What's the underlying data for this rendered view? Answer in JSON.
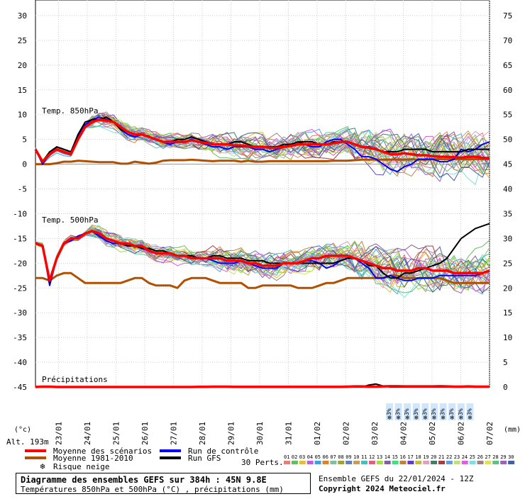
{
  "chart_data": {
    "type": "line",
    "title": "Diagramme des ensembles GEFS sur 384h : 45N 9.8E",
    "subtitle": "Températures 850hPa et 500hPa (°C) , précipitations (mm)",
    "run_label": "Ensemble GEFS du 22/01/2024 - 12Z",
    "copyright": "Copyright 2024 Meteociel.fr",
    "altitude_label": "Alt. 193m",
    "y_left_unit": "(°c)",
    "y_right_unit": "(mm)",
    "y_left_ticks": [
      30,
      25,
      20,
      15,
      10,
      5,
      0,
      -5,
      -10,
      -15,
      -20,
      -25,
      -30,
      -35,
      -40,
      -45
    ],
    "y_right_ticks": [
      75,
      70,
      65,
      60,
      55,
      50,
      45,
      40,
      35,
      30,
      25,
      20,
      15,
      10,
      5,
      0
    ],
    "ylim_left": [
      -45,
      30
    ],
    "x_labels": [
      "23/01",
      "24/01",
      "25/01",
      "26/01",
      "27/01",
      "28/01",
      "29/01",
      "30/01",
      "31/01",
      "01/02",
      "02/02",
      "03/02",
      "04/02",
      "05/02",
      "06/02",
      "07/02"
    ],
    "panel_labels": {
      "t850": "Temp. 850hPa",
      "t500": "Temp. 500hPa",
      "precip": "Précipitations"
    },
    "snow_risk_label": "3%",
    "snow_risk_count": 10,
    "legend": {
      "mean_scenarios": "Moyenne des scénarios",
      "mean_climate": "Moyenne 1981-2010",
      "snow_risk": "Risque neige",
      "control_run": "Run de contrôle",
      "gfs_run": "Run GFS",
      "perts_label": "30 Perts.",
      "perts": [
        "01",
        "02",
        "03",
        "04",
        "05",
        "06",
        "07",
        "08",
        "09",
        "10",
        "11",
        "12",
        "13",
        "14",
        "15",
        "16",
        "17",
        "18",
        "19",
        "20",
        "21",
        "22",
        "23",
        "24",
        "25",
        "26",
        "27",
        "28",
        "29",
        "30"
      ]
    },
    "colors": {
      "mean": "#ff0000",
      "climate": "#b05000",
      "control": "#0000ff",
      "gfs": "#000000",
      "snow": "#66aaff",
      "perts": [
        "#e08080",
        "#60c060",
        "#e0c040",
        "#c060e0",
        "#40a0e0",
        "#e08030",
        "#80c0a0",
        "#a0a040",
        "#6080c0",
        "#c0a060",
        "#40c0c0",
        "#e06080",
        "#a0e040",
        "#8060a0",
        "#40e080",
        "#c08040",
        "#6040c0",
        "#c0c040",
        "#e0a0c0",
        "#408060",
        "#a04040",
        "#60a0e0",
        "#c0e080",
        "#e060e0",
        "#80e0e0",
        "#a08080",
        "#e0e060",
        "#60c080",
        "#a060c0",
        "#4060a0"
      ]
    },
    "series": [
      {
        "name": "Moyenne des scénarios",
        "panel": "t850",
        "values": [
          3,
          0.5,
          2,
          3,
          2.5,
          2,
          5,
          7.5,
          8.5,
          9,
          8.8,
          8.5,
          7.5,
          6.5,
          6,
          6,
          5.5,
          5,
          4.5,
          4.5,
          4.5,
          4.5,
          4.8,
          4.5,
          4.3,
          4,
          4,
          4,
          3.8,
          3.8,
          3.6,
          3.5,
          3.5,
          3.3,
          3.3,
          3.5,
          3.7,
          4,
          4,
          4,
          4,
          4,
          4.2,
          4.5,
          4.5,
          4,
          3.5,
          3.3,
          3,
          2.5,
          2,
          2,
          2.2,
          2,
          1.8,
          1.8,
          1.6,
          1.5,
          1.5,
          1.4,
          1.3,
          1.5,
          1.5,
          1.3,
          1.2
        ]
      },
      {
        "name": "Moyenne 1981-2010",
        "panel": "t850",
        "values": [
          0,
          0,
          0,
          0.2,
          0.5,
          0.5,
          0.7,
          0.6,
          0.5,
          0.4,
          0.4,
          0.4,
          0.1,
          0.1,
          0.5,
          0.3,
          0.1,
          0.3,
          0.7,
          0.8,
          0.8,
          0.8,
          0.9,
          0.8,
          0.7,
          0.6,
          0.7,
          0.7,
          0.7,
          0.5,
          0.7,
          0.5,
          0.5,
          0.6,
          0.6,
          0.6,
          0.6,
          0.6,
          0.6,
          0.6,
          0.6,
          0.6,
          0.7,
          0.7,
          0.7,
          0.8,
          0.9,
          0.9,
          0.9,
          0.9,
          0.9,
          0.9,
          0.9,
          1.0,
          0.9,
          0.9,
          1.0,
          1.0,
          1.0,
          1.0,
          1.0,
          1.0,
          1.0,
          1.0,
          1.0
        ]
      },
      {
        "name": "Run de contrôle",
        "panel": "t850",
        "values": [
          3,
          0,
          2,
          3.5,
          3,
          2.5,
          5.5,
          8,
          9,
          9.5,
          9,
          8.5,
          7,
          6,
          5.5,
          6,
          5.5,
          5,
          4.5,
          4,
          4.5,
          4.5,
          5,
          4.5,
          4,
          3.5,
          3.5,
          3,
          3.5,
          3.5,
          3.5,
          3,
          3,
          2.5,
          3,
          3.5,
          4,
          4.5,
          4,
          3.5,
          3.5,
          4.5,
          5,
          5,
          4,
          3,
          1.5,
          1.5,
          1,
          0,
          -1,
          -1.5,
          -0.5,
          0,
          1,
          1,
          1,
          0.5,
          0.5,
          1,
          3,
          2.5,
          3,
          4,
          4.5
        ]
      },
      {
        "name": "Run GFS",
        "panel": "t850",
        "values": [
          3,
          0.5,
          2.5,
          3.5,
          3,
          2.5,
          6,
          8.5,
          9,
          9,
          9.5,
          8.5,
          7,
          6.5,
          6,
          6,
          5.5,
          5,
          4.5,
          4.5,
          5,
          5,
          5.5,
          5,
          4.5,
          4,
          4,
          4,
          4.5,
          4.5,
          4,
          3.5,
          3.5,
          3.5,
          3.5,
          4,
          4,
          4.5,
          4.5,
          4.5,
          4,
          4,
          4.5,
          4.5,
          4.5,
          4,
          3.5,
          3.5,
          3,
          2.5,
          2.5,
          2.5,
          3,
          3,
          3,
          3,
          2.5,
          2.5,
          2.5,
          2.5,
          2.5,
          3,
          3,
          3,
          3
        ]
      },
      {
        "name": "Moyenne des scénarios",
        "panel": "t500",
        "values": [
          -16,
          -16.5,
          -23.5,
          -19,
          -16,
          -15,
          -15,
          -14,
          -13.5,
          -14,
          -15,
          -15.5,
          -16,
          -16,
          -16.5,
          -16.5,
          -17.5,
          -18,
          -18,
          -18,
          -18.5,
          -18.5,
          -19,
          -19,
          -19,
          -19,
          -19,
          -19.5,
          -19.5,
          -19.5,
          -20,
          -20,
          -20.5,
          -20.5,
          -20.5,
          -20,
          -20,
          -20,
          -19.5,
          -19,
          -19,
          -18.5,
          -18.5,
          -18.5,
          -18.5,
          -19,
          -19.5,
          -20,
          -20.5,
          -21,
          -21,
          -21.5,
          -21.5,
          -21.5,
          -21,
          -21,
          -21.5,
          -21.5,
          -21.5,
          -22,
          -22,
          -22,
          -22,
          -22,
          -21.5
        ]
      },
      {
        "name": "Moyenne 1981-2010",
        "panel": "t500",
        "values": [
          -23,
          -23,
          -23.5,
          -22.5,
          -22,
          -22,
          -23,
          -24,
          -24,
          -24,
          -24,
          -24,
          -24,
          -23.5,
          -23,
          -23,
          -24,
          -24.5,
          -24.5,
          -24.5,
          -25,
          -23.5,
          -23,
          -23,
          -23,
          -23.5,
          -24,
          -24,
          -24,
          -24,
          -25,
          -25,
          -24.5,
          -24.5,
          -24.5,
          -24.5,
          -24.5,
          -25,
          -25,
          -25,
          -24.5,
          -24,
          -24,
          -23.5,
          -23,
          -23,
          -23,
          -23,
          -23,
          -23,
          -22.5,
          -22.5,
          -23,
          -23,
          -23,
          -23,
          -23,
          -23,
          -23.5,
          -24,
          -24,
          -24,
          -24,
          -24,
          -24
        ]
      },
      {
        "name": "Run de contrôle",
        "panel": "t500",
        "values": [
          -16,
          -16.5,
          -24.5,
          -19,
          -16,
          -15.5,
          -14.5,
          -14,
          -13.5,
          -14.5,
          -15.5,
          -16,
          -16,
          -16.5,
          -16.5,
          -17,
          -17.5,
          -18,
          -18,
          -18,
          -18.5,
          -18.5,
          -19,
          -19,
          -19,
          -19.5,
          -20,
          -20,
          -20,
          -19.5,
          -20,
          -20.5,
          -21,
          -21,
          -21,
          -20,
          -20,
          -20,
          -19.5,
          -19.5,
          -20,
          -21,
          -20.5,
          -19.5,
          -19,
          -19,
          -20,
          -21,
          -23,
          -23,
          -22.5,
          -23,
          -23.5,
          -23.5,
          -23,
          -23,
          -23,
          -22.5,
          -22.5,
          -22.5,
          -22.5,
          -22.5,
          -22.5,
          -22,
          -21.5
        ]
      },
      {
        "name": "Run GFS",
        "panel": "t500",
        "values": [
          -16,
          -16.5,
          -24,
          -19,
          -16,
          -15,
          -15,
          -14,
          -13.5,
          -14,
          -15,
          -15.5,
          -16,
          -16.5,
          -16.5,
          -17,
          -17,
          -17.5,
          -17.5,
          -18,
          -18.5,
          -18.5,
          -18.5,
          -19,
          -19,
          -18.5,
          -18.5,
          -19,
          -19,
          -19,
          -19.5,
          -19.5,
          -19.5,
          -20,
          -20,
          -20,
          -20,
          -20,
          -20,
          -20,
          -20,
          -20,
          -20,
          -19.5,
          -19,
          -19,
          -19.5,
          -20.5,
          -20.5,
          -22,
          -23,
          -23,
          -22,
          -22,
          -21.5,
          -21,
          -20.5,
          -20,
          -19,
          -17,
          -15,
          -14,
          -13,
          -12.5,
          -12
        ]
      },
      {
        "name": "Moyenne des scénarios",
        "panel": "precip",
        "values": [
          0,
          0.2,
          0.2,
          0,
          0,
          0,
          0,
          0,
          0,
          0,
          0,
          0,
          0,
          0,
          0,
          0,
          0,
          0,
          0,
          0,
          0,
          0,
          0,
          0.1,
          0.1,
          0.2,
          0.2,
          0.2,
          0.1,
          0.1,
          0.1,
          0.1,
          0.1,
          0.1,
          0.1,
          0.1,
          0.1,
          0.1,
          0.1,
          0.1,
          0.1,
          0.1,
          0.1,
          0.1,
          0.2,
          0.3,
          0.3,
          0.2,
          0.2,
          0.3,
          0.4,
          0.4,
          0.3,
          0.3,
          0.3,
          0.3,
          0.3,
          0.4,
          0.3,
          0.2,
          0.2,
          0.3,
          0.2,
          0.2,
          0.2
        ]
      },
      {
        "name": "Run GFS",
        "panel": "precip",
        "values": [
          0,
          0,
          0,
          0,
          0,
          0,
          0,
          0,
          0,
          0,
          0,
          0,
          0,
          0,
          0,
          0,
          0,
          0,
          0,
          0,
          0,
          0,
          0,
          0,
          0,
          0,
          0,
          0,
          0,
          0,
          0,
          0,
          0,
          0,
          0,
          0,
          0,
          0,
          0,
          0,
          0,
          0,
          0,
          0,
          0,
          0,
          0,
          1,
          1.5,
          0.5,
          0,
          0,
          0,
          0,
          0,
          0,
          0,
          0,
          0,
          0,
          0,
          0,
          0,
          0,
          0
        ]
      }
    ]
  }
}
